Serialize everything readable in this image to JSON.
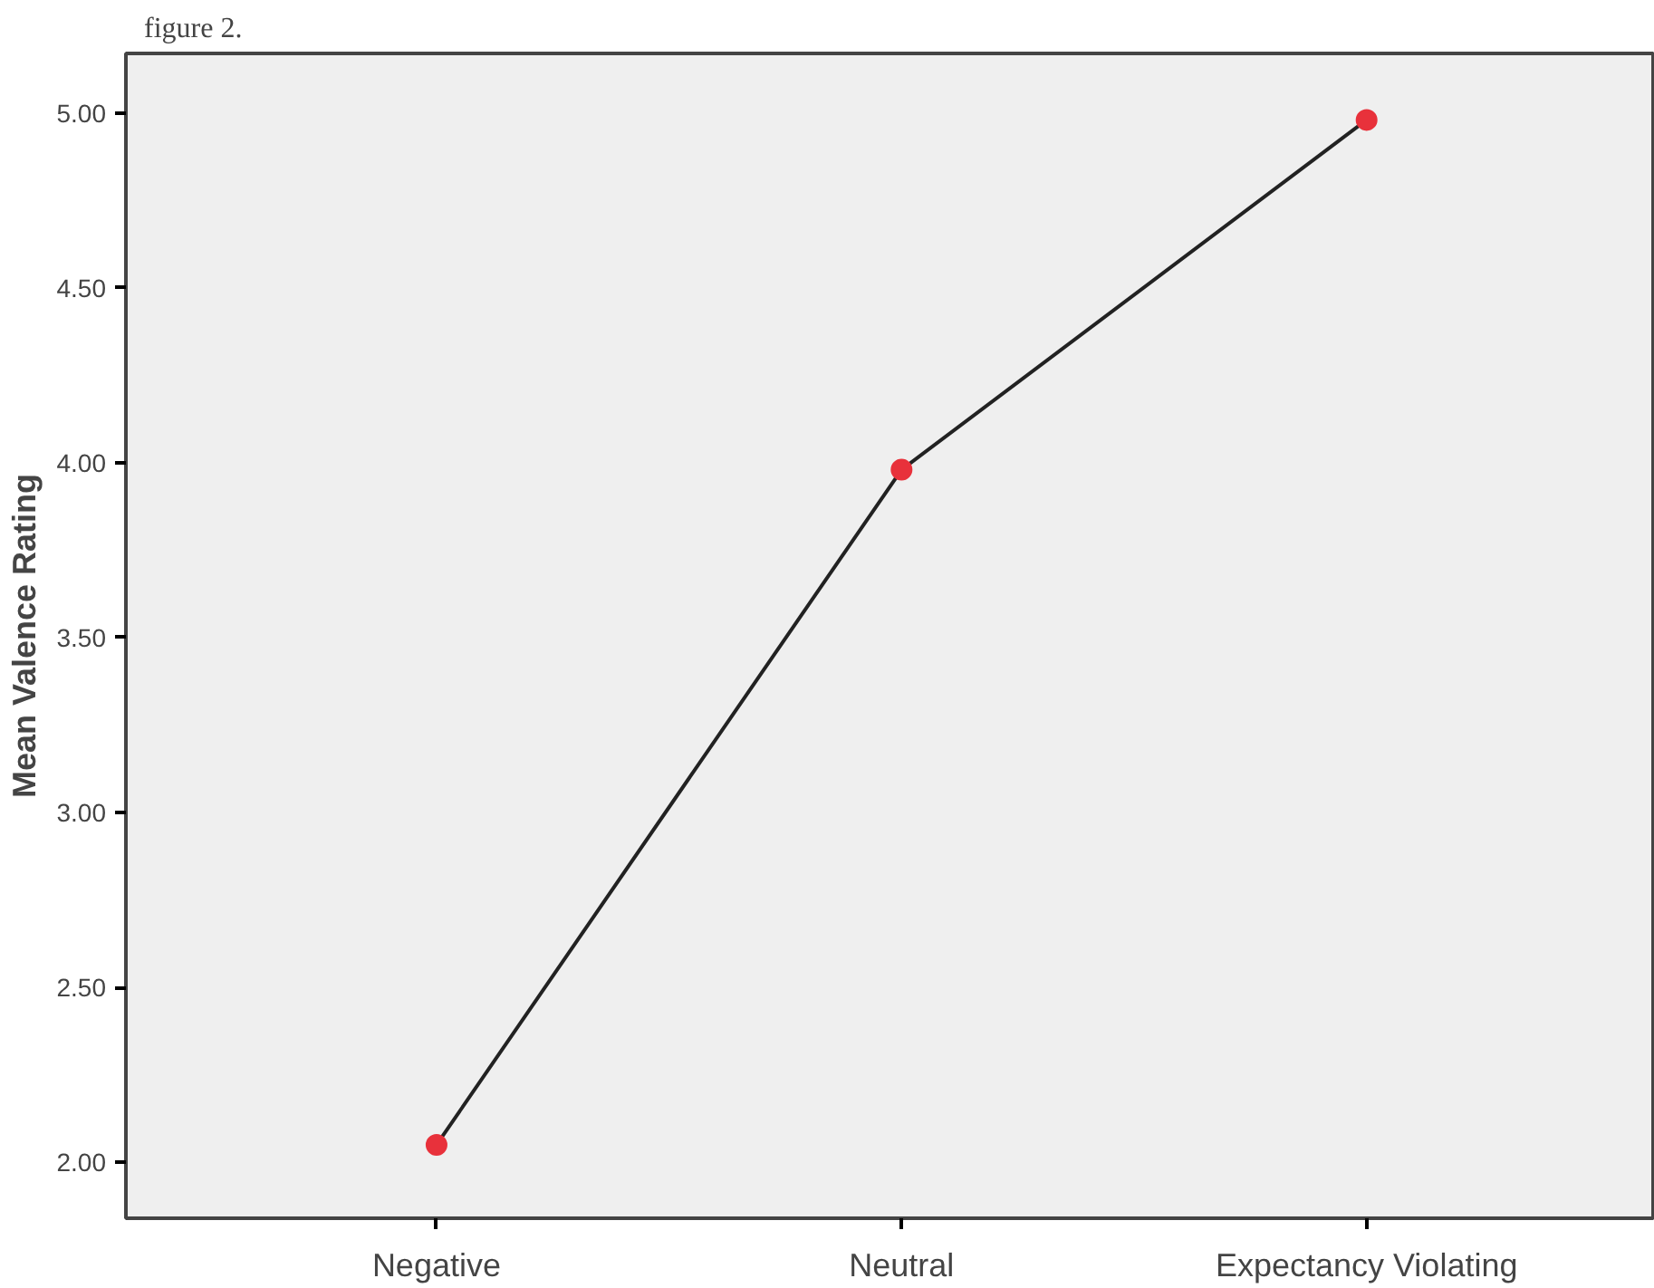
{
  "chart_data": {
    "type": "line",
    "title": "figure 2.",
    "ylabel": "Mean Valence Rating",
    "categories": [
      "Negative",
      "Neutral",
      "Expectancy Violating"
    ],
    "series": [
      {
        "color": "#222222",
        "colors": [
          "#e8313b",
          "#e8313b",
          "#e8313b"
        ],
        "values": [
          2.05,
          3.98,
          4.98
        ]
      }
    ],
    "marker": "circle",
    "line_style": "solid",
    "ylim": [
      1.84,
      5.17
    ],
    "yticks": [
      {
        "value": 2,
        "label": "2.00"
      },
      {
        "value": 2.5,
        "label": "2.50"
      },
      {
        "value": 3,
        "label": "3.00"
      },
      {
        "value": 3.5,
        "label": "3.50"
      },
      {
        "value": 4,
        "label": "4.00"
      },
      {
        "value": 4.5,
        "label": "4.50"
      },
      {
        "value": 5,
        "label": "5.00"
      }
    ],
    "grid": false
  }
}
